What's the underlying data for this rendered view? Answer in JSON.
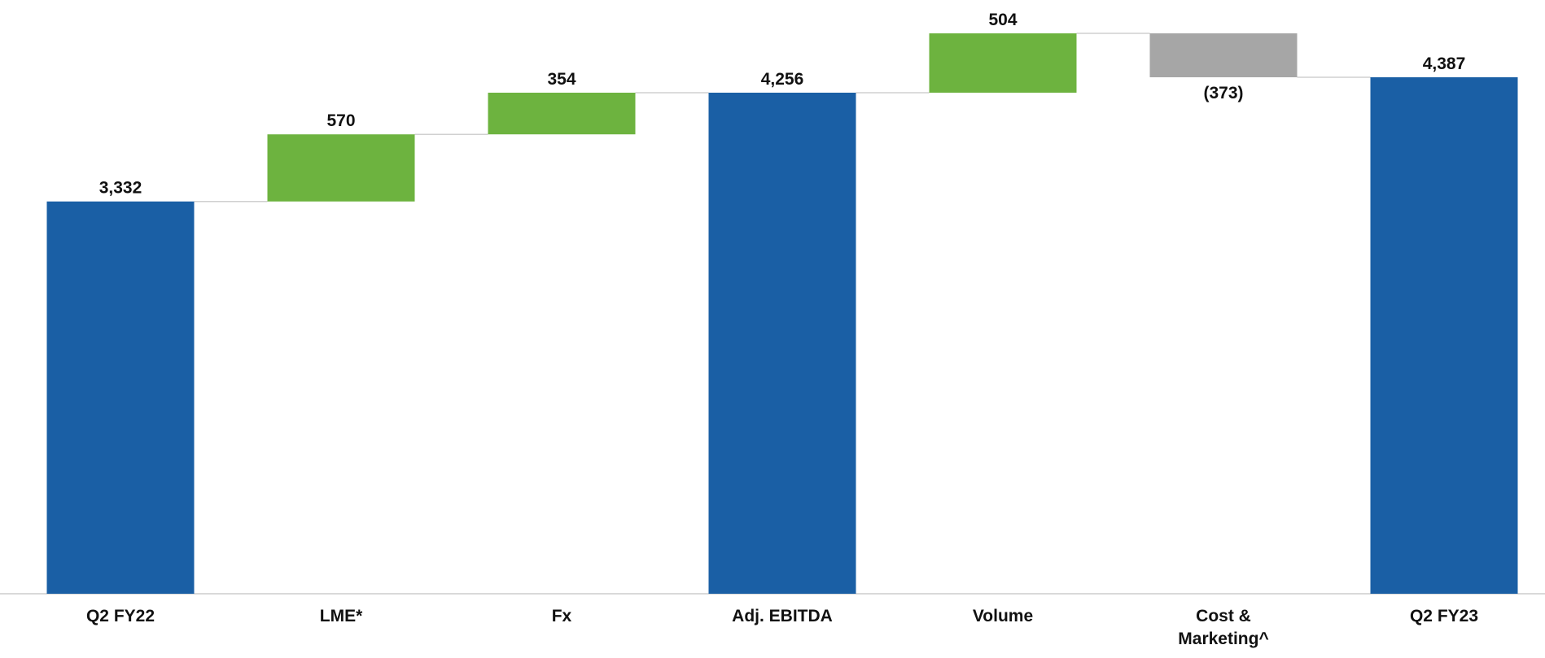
{
  "chart_data": {
    "type": "waterfall",
    "categories": [
      "Q2 FY22",
      "LME*",
      "Fx",
      "Adj. EBITDA",
      "Volume",
      "Cost & Marketing^",
      "Q2 FY23"
    ],
    "values": [
      3332,
      570,
      354,
      4256,
      504,
      -373,
      4387
    ],
    "value_labels": [
      "3,332",
      "570",
      "354",
      "4,256",
      "504",
      "(373)",
      "4,387"
    ],
    "bar_types": [
      "total",
      "delta",
      "delta",
      "total",
      "delta",
      "delta",
      "total"
    ],
    "colors": [
      "#1a5fa5",
      "#6db33f",
      "#6db33f",
      "#1a5fa5",
      "#6db33f",
      "#a6a6a6",
      "#1a5fa5"
    ]
  }
}
